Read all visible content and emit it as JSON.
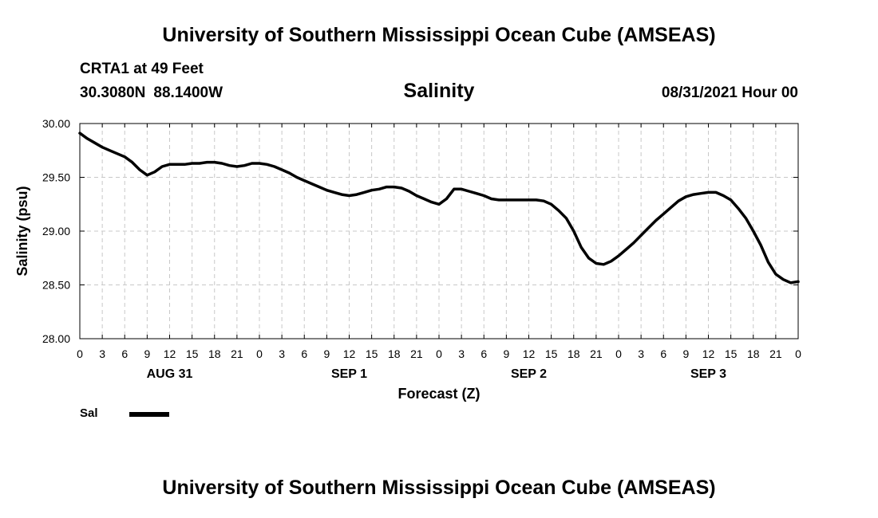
{
  "header": {
    "title": "University of Southern Mississippi Ocean Cube (AMSEAS)",
    "station": "CRTA1 at 49 Feet",
    "latitude": "30.3080N",
    "longitude": "88.1400W",
    "variable_title": "Salinity",
    "datetime": "08/31/2021 Hour 00"
  },
  "footer": {
    "title": "University of Southern Mississippi Ocean Cube (AMSEAS)"
  },
  "legend": {
    "label": "Sal",
    "color": "#000000"
  },
  "chart_data": {
    "type": "line",
    "title": "Salinity",
    "xlabel": "Forecast (Z)",
    "ylabel": "Salinity (psu)",
    "xlim": [
      0,
      96
    ],
    "ylim": [
      28.0,
      30.0
    ],
    "yticks": [
      "28.00",
      "28.50",
      "29.00",
      "29.50",
      "30.00"
    ],
    "xtick_labels": [
      "0",
      "3",
      "6",
      "9",
      "12",
      "15",
      "18",
      "21",
      "0",
      "3",
      "6",
      "9",
      "12",
      "15",
      "18",
      "21",
      "0",
      "3",
      "6",
      "9",
      "12",
      "15",
      "18",
      "21",
      "0",
      "3",
      "6",
      "9",
      "12",
      "15",
      "18",
      "21",
      "0"
    ],
    "day_labels": [
      {
        "label": "AUG 31",
        "hour": 12
      },
      {
        "label": "SEP 1",
        "hour": 36
      },
      {
        "label": "SEP 2",
        "hour": 60
      },
      {
        "label": "SEP 3",
        "hour": 84
      }
    ],
    "grid": true,
    "series": [
      {
        "name": "Sal",
        "x": [
          0,
          1,
          2,
          3,
          4,
          5,
          6,
          7,
          8,
          9,
          10,
          11,
          12,
          13,
          14,
          15,
          16,
          17,
          18,
          19,
          20,
          21,
          22,
          23,
          24,
          25,
          26,
          27,
          28,
          29,
          30,
          31,
          32,
          33,
          34,
          35,
          36,
          37,
          38,
          39,
          40,
          41,
          42,
          43,
          44,
          45,
          46,
          47,
          48,
          49,
          50,
          51,
          52,
          53,
          54,
          55,
          56,
          57,
          58,
          59,
          60,
          61,
          62,
          63,
          64,
          65,
          66,
          67,
          68,
          69,
          70,
          71,
          72,
          73,
          74,
          75,
          76,
          77,
          78,
          79,
          80,
          81,
          82,
          83,
          84,
          85,
          86,
          87,
          88,
          89,
          90,
          91,
          92,
          93,
          94,
          95,
          96
        ],
        "values": [
          29.91,
          29.86,
          29.82,
          29.78,
          29.75,
          29.72,
          29.69,
          29.64,
          29.57,
          29.52,
          29.55,
          29.6,
          29.62,
          29.62,
          29.62,
          29.63,
          29.63,
          29.64,
          29.64,
          29.63,
          29.61,
          29.6,
          29.61,
          29.63,
          29.63,
          29.62,
          29.6,
          29.57,
          29.54,
          29.5,
          29.47,
          29.44,
          29.41,
          29.38,
          29.36,
          29.34,
          29.33,
          29.34,
          29.36,
          29.38,
          29.39,
          29.41,
          29.41,
          29.4,
          29.37,
          29.33,
          29.3,
          29.27,
          29.25,
          29.3,
          29.39,
          29.39,
          29.37,
          29.35,
          29.33,
          29.3,
          29.29,
          29.29,
          29.29,
          29.29,
          29.29,
          29.29,
          29.28,
          29.25,
          29.19,
          29.12,
          29.0,
          28.85,
          28.75,
          28.7,
          28.69,
          28.72,
          28.77,
          28.83,
          28.89,
          28.96,
          29.03,
          29.1,
          29.16,
          29.22,
          29.28,
          29.32,
          29.34,
          29.35,
          29.36,
          29.36,
          29.33,
          29.29,
          29.21,
          29.12,
          29.0,
          28.87,
          28.71,
          28.6,
          28.55,
          28.52,
          28.53
        ]
      }
    ]
  }
}
